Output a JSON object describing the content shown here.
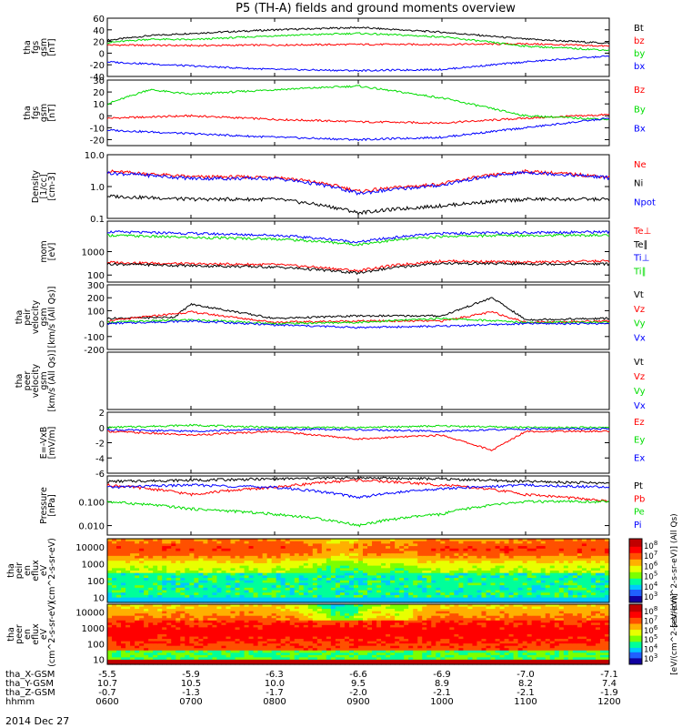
{
  "title": "P5 (TH-A) fields and ground moments overview",
  "date": "2014 Dec 27",
  "colors": {
    "black": "#000000",
    "red": "#ff0000",
    "green": "#00dd00",
    "blue": "#0000ff"
  },
  "ephemeris": {
    "row_labels": [
      "tha_X-GSM",
      "tha_Y-GSM",
      "tha_Z-GSM",
      "hhmm"
    ],
    "columns": [
      [
        "-5.5",
        "10.7",
        "-0.7",
        "0600"
      ],
      [
        "-5.9",
        "10.5",
        "-1.3",
        "0700"
      ],
      [
        "-6.3",
        "10.0",
        "-1.7",
        "0800"
      ],
      [
        "-6.6",
        "9.5",
        "-2.0",
        "0900"
      ],
      [
        "-6.9",
        "8.9",
        "-2.1",
        "1000"
      ],
      [
        "-7.0",
        "8.2",
        "-2.1",
        "1100"
      ],
      [
        "-7.1",
        "7.4",
        "-1.9",
        "1200"
      ]
    ]
  },
  "colorbars": [
    {
      "label": "[eV/(cm^2-s-sr-eV)] (All Qs)",
      "ticks": [
        "10^8",
        "10^7",
        "10^6",
        "10^5",
        "10^4",
        "10^3"
      ]
    },
    {
      "label": "[eV/(cm^2-s-sr-eV)]",
      "ticks": [
        "10^8",
        "10^7",
        "10^6",
        "10^5",
        "10^4",
        "10^3"
      ]
    }
  ],
  "chart_data": [
    {
      "type": "line",
      "ylabel": [
        "tha",
        "fgs",
        "gsm",
        "[nT]"
      ],
      "ylim": [
        -40,
        60
      ],
      "yticks": [
        "60",
        "40",
        "20",
        "0",
        "-20",
        "-40"
      ],
      "x_range_hhmm": [
        "0600",
        "1200"
      ],
      "series": [
        {
          "name": "Bt",
          "color": "black",
          "x": [
            0,
            0.5,
            1,
            2,
            3,
            4,
            5,
            6
          ],
          "values": [
            22,
            30,
            34,
            40,
            44,
            36,
            24,
            17
          ]
        },
        {
          "name": "bz",
          "color": "red",
          "x": [
            0,
            1,
            2,
            3,
            4,
            5,
            6
          ],
          "values": [
            14,
            13,
            14,
            15,
            15,
            16,
            12
          ]
        },
        {
          "name": "by",
          "color": "green",
          "x": [
            0,
            0.5,
            1,
            2,
            3,
            4,
            5,
            6
          ],
          "values": [
            18,
            24,
            23,
            30,
            34,
            28,
            12,
            5
          ]
        },
        {
          "name": "bx",
          "color": "blue",
          "x": [
            0,
            1,
            2,
            3,
            4,
            5,
            6
          ],
          "values": [
            -15,
            -22,
            -28,
            -30,
            -28,
            -15,
            -5
          ]
        }
      ]
    },
    {
      "type": "line",
      "ylabel": [
        "tha",
        "fgs",
        "gsm",
        "[nT]"
      ],
      "ylim": [
        -25,
        30
      ],
      "yticks": [
        "30",
        "20",
        "10",
        "0",
        "-10",
        "-20"
      ],
      "series": [
        {
          "name": "Bz",
          "color": "red",
          "x": [
            0,
            1,
            2,
            3,
            4,
            5,
            6
          ],
          "values": [
            -2,
            0,
            -3,
            -5,
            -6,
            -2,
            1
          ]
        },
        {
          "name": "By",
          "color": "green",
          "x": [
            0,
            0.5,
            1,
            2,
            3,
            4,
            5,
            6
          ],
          "values": [
            10,
            22,
            18,
            22,
            25,
            15,
            0,
            -3
          ]
        },
        {
          "name": "Bx",
          "color": "blue",
          "x": [
            0,
            1,
            2,
            3,
            4,
            5,
            6
          ],
          "values": [
            -12,
            -15,
            -18,
            -20,
            -18,
            -10,
            -2
          ]
        }
      ]
    },
    {
      "type": "line",
      "ylabel": [
        "Density",
        "[1/cc]",
        "[cm-3]"
      ],
      "yscale": "log",
      "ylim": [
        0.1,
        10
      ],
      "yticks": [
        "10.0",
        "1.0",
        "0.1"
      ],
      "series": [
        {
          "name": "Ne",
          "color": "red",
          "x": [
            0,
            1,
            2,
            3,
            4,
            5,
            6
          ],
          "values": [
            3,
            2,
            2,
            0.7,
            1.2,
            3,
            2
          ]
        },
        {
          "name": "Ni",
          "color": "black",
          "x": [
            0,
            1,
            2,
            3,
            4,
            5,
            6
          ],
          "values": [
            0.5,
            0.4,
            0.4,
            0.15,
            0.25,
            0.4,
            0.4
          ]
        },
        {
          "name": "Npot",
          "color": "blue",
          "x": [
            0,
            1,
            2,
            3,
            4,
            5,
            6
          ],
          "values": [
            2.7,
            1.8,
            1.8,
            0.6,
            1.1,
            2.8,
            1.9
          ]
        }
      ]
    },
    {
      "type": "line",
      "ylabel": [
        "mom",
        "[eV]"
      ],
      "yscale": "log",
      "ylim": [
        50,
        20000
      ],
      "yticks": [
        "1000",
        "100"
      ],
      "series": [
        {
          "name": "Te⊥",
          "color": "red",
          "x": [
            0,
            1,
            2,
            3,
            4,
            5,
            6
          ],
          "values": [
            350,
            300,
            280,
            150,
            400,
            350,
            400
          ]
        },
        {
          "name": "Te∥",
          "color": "black",
          "x": [
            0,
            1,
            2,
            3,
            4,
            5,
            6
          ],
          "values": [
            300,
            250,
            220,
            120,
            320,
            300,
            300
          ]
        },
        {
          "name": "Ti⊥",
          "color": "blue",
          "x": [
            0,
            1,
            2,
            3,
            4,
            5,
            6
          ],
          "values": [
            7000,
            6000,
            5000,
            2500,
            6000,
            6500,
            7000
          ]
        },
        {
          "name": "Ti∥",
          "color": "green",
          "x": [
            0,
            1,
            2,
            3,
            4,
            5,
            6
          ],
          "values": [
            5000,
            4000,
            3500,
            2000,
            4500,
            5000,
            5000
          ]
        }
      ]
    },
    {
      "type": "line",
      "ylabel": [
        "tha",
        "peir",
        "velocity",
        "gsm",
        "[km/s (All Qs)]"
      ],
      "ylim": [
        -200,
        300
      ],
      "yticks": [
        "300",
        "200",
        "100",
        "0",
        "-100",
        "-200"
      ],
      "series": [
        {
          "name": "Vt",
          "color": "black",
          "x": [
            0,
            0.8,
            1,
            2,
            3,
            4,
            4.6,
            5,
            6
          ],
          "values": [
            40,
            50,
            150,
            40,
            60,
            60,
            200,
            30,
            40
          ]
        },
        {
          "name": "Vz",
          "color": "red",
          "x": [
            0,
            1,
            2,
            3,
            4,
            4.6,
            5,
            6
          ],
          "values": [
            20,
            90,
            10,
            20,
            20,
            90,
            10,
            20
          ]
        },
        {
          "name": "Vy",
          "color": "green",
          "x": [
            0,
            1,
            2,
            3,
            4,
            5,
            6
          ],
          "values": [
            10,
            30,
            0,
            10,
            40,
            10,
            10
          ]
        },
        {
          "name": "Vx",
          "color": "blue",
          "x": [
            0,
            1,
            2,
            3,
            4,
            5,
            6
          ],
          "values": [
            0,
            20,
            -10,
            -30,
            -20,
            0,
            0
          ]
        }
      ]
    },
    {
      "type": "line",
      "ylabel": [
        "tha",
        "peer",
        "velocity",
        "gsm",
        "[km/s (All Qs)]"
      ],
      "legend": [
        "Vt",
        "Vz",
        "Vy",
        "Vx"
      ],
      "legend_colors": [
        "black",
        "red",
        "green",
        "blue"
      ],
      "series": []
    },
    {
      "type": "line",
      "ylabel": [
        "E=-VxB",
        "[mV/m]"
      ],
      "ylim": [
        -6,
        2
      ],
      "yticks": [
        "2",
        "0",
        "-2",
        "-4",
        "-6"
      ],
      "series": [
        {
          "name": "Ez",
          "color": "red",
          "x": [
            0,
            1,
            2,
            3,
            4,
            4.6,
            5,
            6
          ],
          "values": [
            -0.5,
            -1,
            -0.5,
            -1.5,
            -1,
            -3,
            -0.5,
            -0.5
          ]
        },
        {
          "name": "Ey",
          "color": "green",
          "x": [
            0,
            1,
            2,
            3,
            4,
            5,
            6
          ],
          "values": [
            0,
            0.3,
            0,
            0,
            0.2,
            0,
            0
          ]
        },
        {
          "name": "Ex",
          "color": "blue",
          "x": [
            0,
            1,
            2,
            3,
            4,
            5,
            6
          ],
          "values": [
            -0.3,
            -0.5,
            -0.2,
            -0.3,
            -0.5,
            -0.2,
            -0.2
          ]
        }
      ]
    },
    {
      "type": "line",
      "ylabel": [
        "Pressure",
        "[nPa]"
      ],
      "yscale": "log",
      "ylim": [
        0.004,
        1.2
      ],
      "yticks": [
        "0.100",
        "0.010"
      ],
      "series": [
        {
          "name": "Pt",
          "color": "black",
          "x": [
            0,
            1,
            2,
            3,
            4,
            5,
            6
          ],
          "values": [
            0.7,
            0.8,
            0.9,
            1.0,
            0.9,
            0.7,
            0.6
          ]
        },
        {
          "name": "Pb",
          "color": "red",
          "x": [
            0,
            1,
            2,
            3,
            4,
            5,
            6
          ],
          "values": [
            0.5,
            0.2,
            0.4,
            0.8,
            0.5,
            0.2,
            0.1
          ]
        },
        {
          "name": "Pe",
          "color": "green",
          "x": [
            0,
            1,
            2,
            3,
            4,
            5,
            6
          ],
          "values": [
            0.1,
            0.05,
            0.03,
            0.01,
            0.03,
            0.1,
            0.1
          ]
        },
        {
          "name": "Pi",
          "color": "blue",
          "x": [
            0,
            1,
            2,
            3,
            4,
            5,
            6
          ],
          "values": [
            0.4,
            0.5,
            0.4,
            0.15,
            0.35,
            0.5,
            0.4
          ]
        }
      ]
    },
    {
      "type": "heatmap",
      "ylabel": [
        "tha",
        "peir",
        "en",
        "eflux",
        "eV",
        "(cm^2-s-sr-eV)"
      ],
      "yscale": "log",
      "ylim": [
        5,
        30000
      ],
      "yticks": [
        "10000",
        "1000",
        "100",
        "10"
      ]
    },
    {
      "type": "heatmap",
      "ylabel": [
        "tha",
        "peer",
        "en",
        "eflux",
        "eV",
        "(cm^2-s-sr-eV)"
      ],
      "yscale": "log",
      "ylim": [
        5,
        30000
      ],
      "yticks": [
        "10000",
        "1000",
        "100",
        "10"
      ]
    }
  ]
}
